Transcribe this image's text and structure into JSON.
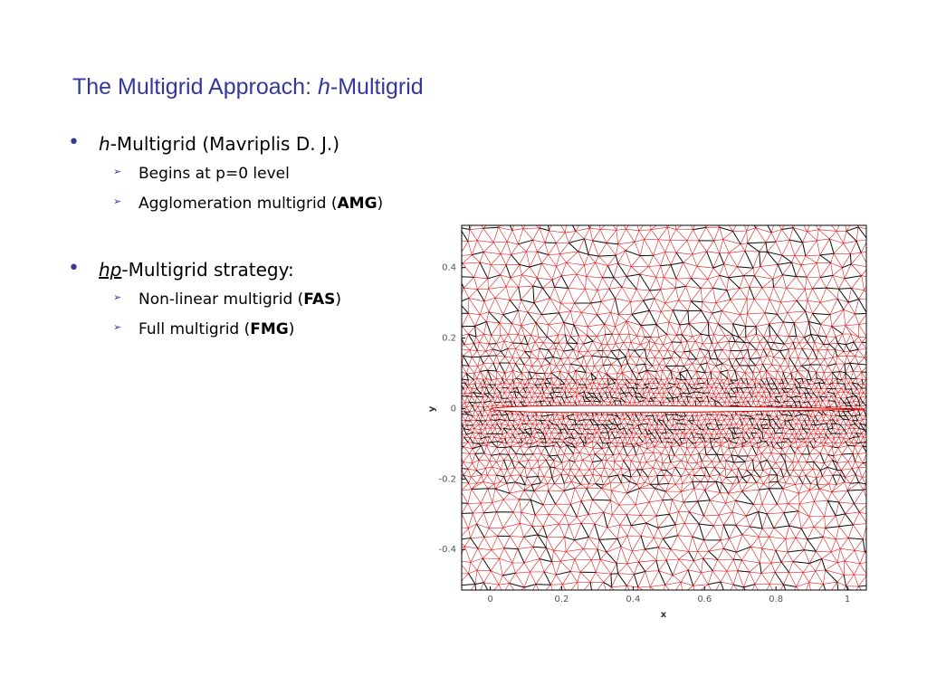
{
  "title": [
    "The Multigrid Approach: ",
    "h",
    "-Multigrid"
  ],
  "bullets": [
    {
      "text": [
        "h",
        "-Multigrid (Mavriplis D. J.)"
      ],
      "sub": [
        [
          "Begins at p=0 level"
        ],
        [
          "Agglomeration multigrid (",
          "AMG",
          ")"
        ]
      ]
    },
    {
      "text": [
        "hp",
        "-Multigrid strategy:"
      ],
      "sub": [
        [
          "Non-linear multigrid (",
          "FAS",
          ")"
        ],
        [
          "Full multigrid (",
          "FMG",
          ")"
        ]
      ]
    }
  ],
  "figure": {
    "xlabel": "x",
    "ylabel": "y",
    "xlim": [
      -0.08,
      1.053
    ],
    "ylim": [
      -0.515,
      0.52
    ],
    "xticks": [
      0,
      0.2,
      0.4,
      0.6,
      0.8,
      1
    ],
    "yticks": [
      -0.4,
      -0.2,
      0,
      0.2,
      0.4
    ]
  }
}
